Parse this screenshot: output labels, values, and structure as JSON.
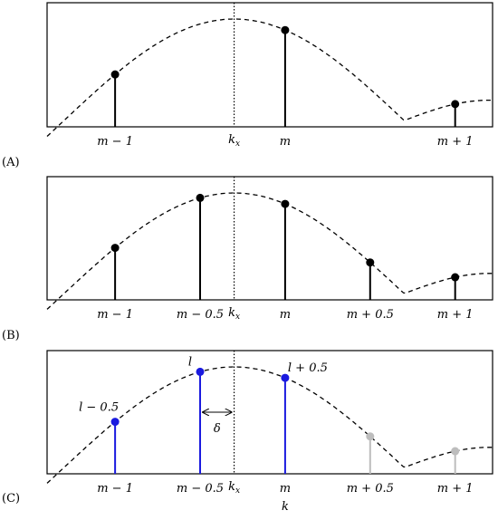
{
  "panels": [
    {
      "tag": "(A)",
      "ticks": [
        {
          "k": -1,
          "label": "m − 1"
        },
        {
          "k": 0,
          "label": "m"
        },
        {
          "k": 1,
          "label": "m + 1"
        }
      ],
      "kx_label": "kx",
      "stems": [
        {
          "k": -1,
          "color": "#000000"
        },
        {
          "k": 0,
          "color": "#000000"
        },
        {
          "k": 1,
          "color": "#000000"
        }
      ],
      "annotations": []
    },
    {
      "tag": "(B)",
      "ticks": [
        {
          "k": -1,
          "label": "m − 1"
        },
        {
          "k": -0.5,
          "label": "m − 0.5"
        },
        {
          "k": 0,
          "label": "m"
        },
        {
          "k": 0.5,
          "label": "m + 0.5"
        },
        {
          "k": 1,
          "label": "m + 1"
        }
      ],
      "kx_label": "kx",
      "stems": [
        {
          "k": -1,
          "color": "#000000"
        },
        {
          "k": -0.5,
          "color": "#000000"
        },
        {
          "k": 0,
          "color": "#000000"
        },
        {
          "k": 0.5,
          "color": "#000000"
        },
        {
          "k": 1,
          "color": "#000000"
        }
      ],
      "annotations": []
    },
    {
      "tag": "(C)",
      "ticks": [
        {
          "k": -1,
          "label": "m − 1"
        },
        {
          "k": -0.5,
          "label": "m − 0.5"
        },
        {
          "k": 0,
          "label": "m"
        },
        {
          "k": 0.5,
          "label": "m + 0.5"
        },
        {
          "k": 1,
          "label": "m + 1"
        }
      ],
      "kx_label": "kx",
      "xlabel": "k",
      "stems": [
        {
          "k": -1,
          "color": "#1a1adf",
          "label": "l − 0.5"
        },
        {
          "k": -0.5,
          "color": "#1a1adf",
          "label": "l"
        },
        {
          "k": 0,
          "color": "#1a1adf",
          "label": "l + 0.5"
        },
        {
          "k": 0.5,
          "color": "#bdbdbd"
        },
        {
          "k": 1,
          "color": "#bdbdbd"
        }
      ],
      "delta_label": "δ"
    }
  ],
  "curve": {
    "kx": -0.3,
    "main_lobe_zero": 0.7,
    "side_lobe_peak": 0.2
  }
}
